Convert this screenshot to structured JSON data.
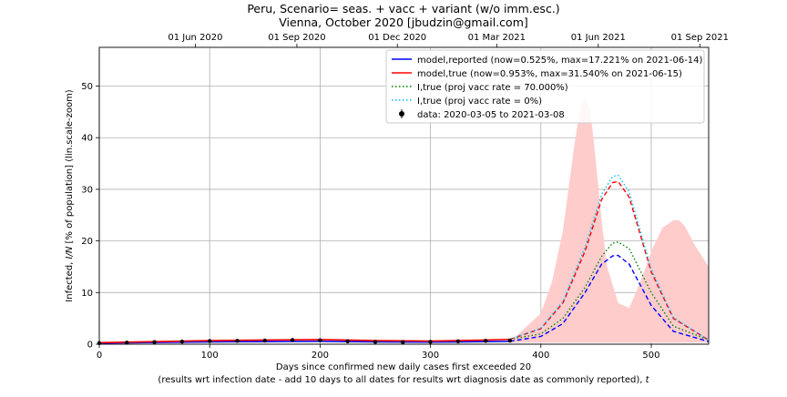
{
  "chart_data": {
    "type": "line",
    "title": "Peru, Scenario= seas. + vacc + variant (w/o imm.esc.)",
    "subtitle": "Vienna, October 2020 [jbudzin@gmail.com]",
    "xlabel": "Days since confirmed new daily cases first exceeded 20",
    "xlabel2": "(results wrt infection date - add 10 days to all dates for results wrt diagnosis date as commonly reported), ",
    "xlabel2_italic": "t",
    "ylabel_prefix": "Infected, ",
    "ylabel_italic": "I/N",
    "ylabel_suffix": " [% of population] (lin.scale-zoom)",
    "xlim": [
      0,
      552
    ],
    "ylim": [
      0,
      57.5
    ],
    "grid": true,
    "x_ticks": [
      0,
      100,
      200,
      300,
      400,
      500
    ],
    "x_tick_labels": [
      "0",
      "100",
      "200",
      "300",
      "400",
      "500"
    ],
    "y_ticks": [
      0,
      10,
      20,
      30,
      40,
      50
    ],
    "y_tick_labels": [
      "0",
      "10",
      "20",
      "30",
      "40",
      "50"
    ],
    "top_ticks": [
      {
        "x": 87,
        "label": "01 Jun 2020"
      },
      {
        "x": 179,
        "label": "01 Sep 2020"
      },
      {
        "x": 270,
        "label": "01 Dec 2020"
      },
      {
        "x": 360,
        "label": "01 Mar 2021"
      },
      {
        "x": 452,
        "label": "01 Jun 2021"
      },
      {
        "x": 544,
        "label": "01 Sep 2021"
      }
    ],
    "legend_placement": "top-right",
    "series": [
      {
        "name": "model,reported (now=0.525%, max=17.221% on 2021-06-14)",
        "color": "#0000ff",
        "style": "solid-dashed",
        "x": [
          0,
          50,
          100,
          150,
          200,
          250,
          300,
          350,
          372,
          400,
          420,
          440,
          455,
          465,
          470,
          480,
          500,
          520,
          552
        ],
        "y": [
          0.2,
          0.35,
          0.45,
          0.5,
          0.55,
          0.45,
          0.4,
          0.5,
          0.55,
          1.5,
          4,
          10,
          15.5,
          17.1,
          17.2,
          15.5,
          7.5,
          2.5,
          0.5
        ]
      },
      {
        "name": "model,true (now=0.953%, max=31.540% on 2021-06-15)",
        "color": "#ff0000",
        "style": "solid-dashed",
        "x": [
          0,
          50,
          100,
          150,
          200,
          250,
          300,
          350,
          372,
          400,
          420,
          440,
          455,
          465,
          470,
          480,
          500,
          520,
          552
        ],
        "y": [
          0.3,
          0.5,
          0.7,
          0.8,
          0.9,
          0.7,
          0.6,
          0.8,
          0.95,
          3,
          8,
          18,
          28,
          31.3,
          31.5,
          28.5,
          14,
          5,
          0.8
        ]
      },
      {
        "name": "I,true (proj vacc rate = 70.000%)",
        "color": "#008000",
        "style": "dotted",
        "x": [
          372,
          400,
          420,
          440,
          455,
          465,
          470,
          480,
          500,
          520,
          552
        ],
        "y": [
          0.95,
          2,
          5,
          11,
          17,
          19.6,
          19.8,
          18.5,
          10,
          3.5,
          0.8
        ]
      },
      {
        "name": "I,true (proj vacc rate = 0%)",
        "color": "#00bfff",
        "style": "dotted",
        "x": [
          372,
          400,
          420,
          440,
          455,
          465,
          470,
          480,
          500,
          520,
          552
        ],
        "y": [
          0.95,
          3.1,
          8.3,
          18.8,
          29,
          32.5,
          32.7,
          29.5,
          14.5,
          5.2,
          0.8
        ]
      }
    ],
    "uncertainty_band": {
      "color": "#ffcccc",
      "x": [
        372,
        380,
        400,
        410,
        420,
        430,
        435,
        440,
        445,
        450,
        455,
        460,
        470,
        480,
        490,
        500,
        510,
        520,
        525,
        530,
        540,
        552
      ],
      "lower": [
        0.3,
        0.3,
        0.3,
        0.3,
        0.3,
        0.3,
        0.3,
        0.3,
        0.3,
        0.3,
        0.3,
        0.3,
        0.3,
        0.3,
        0.3,
        0.3,
        0.3,
        0.3,
        0.3,
        0.3,
        0.3,
        0.3
      ],
      "upper": [
        0.8,
        2,
        6,
        12,
        22,
        38,
        45,
        48,
        45,
        35,
        24,
        15,
        8,
        7,
        12,
        18,
        22.5,
        24,
        24,
        23,
        19,
        15
      ]
    },
    "data_series": {
      "name": "data: 2020-03-05 to 2021-03-08",
      "color": "#000000",
      "x": [
        0,
        25,
        50,
        75,
        100,
        125,
        150,
        175,
        200,
        225,
        250,
        275,
        300,
        325,
        350,
        372
      ],
      "y": [
        0.2,
        0.3,
        0.4,
        0.5,
        0.6,
        0.65,
        0.7,
        0.8,
        0.75,
        0.55,
        0.45,
        0.4,
        0.45,
        0.55,
        0.65,
        0.7
      ],
      "err": [
        0.08,
        0.1,
        0.12,
        0.15,
        0.18,
        0.2,
        0.22,
        0.25,
        0.22,
        0.18,
        0.15,
        0.13,
        0.15,
        0.18,
        0.2,
        0.22
      ]
    }
  }
}
